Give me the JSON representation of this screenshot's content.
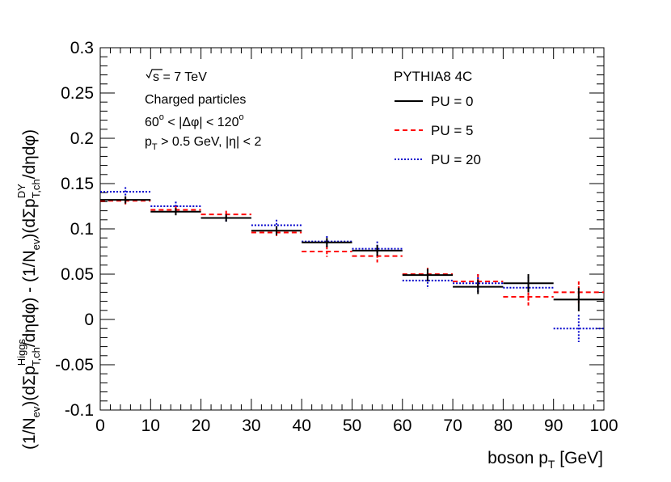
{
  "chart_data": {
    "type": "step",
    "xlabel_main": "boson p",
    "xlabel_sub": "T",
    "xlabel_unit": " [GeV]",
    "ylabel_parts": {
      "p1": "(1/N",
      "p1_sub": "ev",
      "p2": ")(dΣp",
      "p2_sup": "Higgs",
      "p2_sub": "T,ch",
      "p3": "/dηdφ) - (1/N",
      "p3_sub": "ev",
      "p4": ")(dΣp",
      "p4_sup": "DY",
      "p4_sub": "T,ch",
      "p5": "/dηdφ)"
    },
    "xlim": [
      0,
      100
    ],
    "ylim": [
      -0.1,
      0.3
    ],
    "x_ticks": [
      "0",
      "10",
      "20",
      "30",
      "40",
      "50",
      "60",
      "70",
      "80",
      "90",
      "100"
    ],
    "y_ticks": [
      "-0.1",
      "-0.05",
      "0",
      "0.05",
      "0.1",
      "0.15",
      "0.2",
      "0.25",
      "0.3"
    ],
    "annotations": {
      "sqrt_s": "s = 7 TeV",
      "charged": "Charged particles",
      "dphi_a": "60",
      "dphi_sup1": "o",
      "dphi_b": " < |Δφ| < 120",
      "dphi_sup2": "o",
      "pt_a": "p",
      "pt_sub": "T",
      "pt_b": " > 0.5 GeV, |η| < 2"
    },
    "legend_title": "PYTHIA8 4C",
    "bin_edges": [
      0,
      10,
      20,
      30,
      40,
      50,
      60,
      70,
      80,
      90,
      100
    ],
    "series": [
      {
        "name": "PU = 0",
        "color": "#000000",
        "style": "solid",
        "values": [
          0.132,
          0.119,
          0.112,
          0.098,
          0.085,
          0.076,
          0.049,
          0.036,
          0.04,
          0.022
        ],
        "errors": [
          0.004,
          0.004,
          0.004,
          0.005,
          0.005,
          0.006,
          0.007,
          0.008,
          0.01,
          0.013
        ]
      },
      {
        "name": "PU = 5",
        "color": "#ff0000",
        "style": "dashed",
        "values": [
          0.131,
          0.121,
          0.116,
          0.096,
          0.075,
          0.07,
          0.05,
          0.042,
          0.025,
          0.03
        ],
        "errors": [
          0.004,
          0.004,
          0.004,
          0.005,
          0.006,
          0.007,
          0.007,
          0.008,
          0.01,
          0.012
        ]
      },
      {
        "name": "PU = 20",
        "color": "#0000cc",
        "style": "dotted",
        "values": [
          0.141,
          0.125,
          0.112,
          0.104,
          0.086,
          0.078,
          0.043,
          0.04,
          0.035,
          -0.01
        ],
        "errors": [
          0.005,
          0.005,
          0.005,
          0.006,
          0.006,
          0.008,
          0.009,
          0.01,
          0.012,
          0.015
        ]
      }
    ]
  }
}
